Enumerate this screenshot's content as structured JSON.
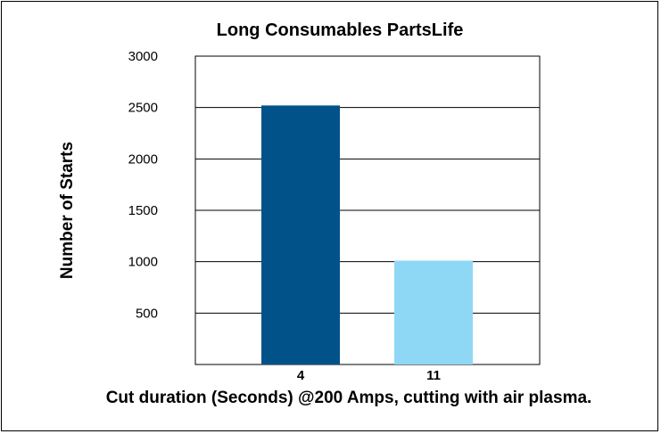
{
  "chart_data": {
    "type": "bar",
    "title": "Long Consumables PartsLife",
    "xlabel": "Cut duration (Seconds) @200 Amps, cutting with air plasma.",
    "ylabel": "Number of Starts",
    "categories": [
      "4",
      "11"
    ],
    "values": [
      2520,
      1010
    ],
    "bar_colors": [
      "#02528A",
      "#8ED8F5"
    ],
    "ylim": [
      0,
      3000
    ],
    "yticks": [
      500,
      1000,
      1500,
      2000,
      2500,
      3000
    ],
    "yticks_labels": [
      "500",
      "1000",
      "1500",
      "2000",
      "2500",
      "3000"
    ],
    "grid": true
  }
}
